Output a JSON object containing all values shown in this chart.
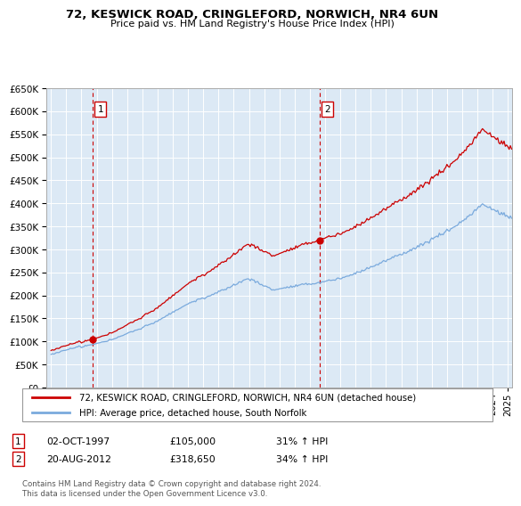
{
  "title": "72, KESWICK ROAD, CRINGLEFORD, NORWICH, NR4 6UN",
  "subtitle": "Price paid vs. HM Land Registry's House Price Index (HPI)",
  "legend_line1": "72, KESWICK ROAD, CRINGLEFORD, NORWICH, NR4 6UN (detached house)",
  "legend_line2": "HPI: Average price, detached house, South Norfolk",
  "annotation1_date": "02-OCT-1997",
  "annotation1_price": "£105,000",
  "annotation1_hpi": "31% ↑ HPI",
  "annotation2_date": "20-AUG-2012",
  "annotation2_price": "£318,650",
  "annotation2_hpi": "34% ↑ HPI",
  "footer": "Contains HM Land Registry data © Crown copyright and database right 2024.\nThis data is licensed under the Open Government Licence v3.0.",
  "sale1_year": 1997.75,
  "sale1_value": 105000,
  "sale2_year": 2012.63,
  "sale2_value": 318650,
  "red_color": "#cc0000",
  "blue_color": "#7aaadd",
  "bg_color": "#dce9f5",
  "grid_color": "#ffffff",
  "vline_color": "#cc0000",
  "ylim_max": 650000,
  "xlim_start": 1994.7,
  "xlim_end": 2025.3,
  "y_ticks": [
    0,
    50000,
    100000,
    150000,
    200000,
    250000,
    300000,
    350000,
    400000,
    450000,
    500000,
    550000,
    600000,
    650000
  ]
}
